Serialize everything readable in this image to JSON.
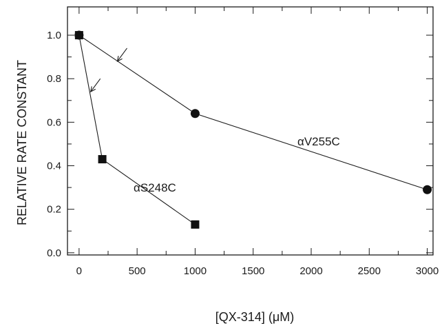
{
  "chart_data": {
    "type": "line",
    "title": "",
    "xlabel": "[QX-314] (μM)",
    "ylabel": "RELATIVE RATE CONSTANT",
    "xlim": [
      -100,
      3050
    ],
    "ylim": [
      -0.01,
      1.13
    ],
    "xticks": [
      0,
      500,
      1000,
      1500,
      2000,
      2500,
      3000
    ],
    "xtick_labels": [
      "0",
      "500",
      "1000",
      "1500",
      "2000",
      "2500",
      "3000"
    ],
    "yticks": [
      0.0,
      0.2,
      0.4,
      0.6,
      0.8,
      1.0
    ],
    "ytick_labels": [
      "0.0",
      "0.2",
      "0.4",
      "0.6",
      "0.8",
      "1.0"
    ],
    "grid": false,
    "series": [
      {
        "name": "αV255C",
        "marker": "circle",
        "x": [
          0,
          1000,
          3000
        ],
        "y": [
          1.0,
          0.64,
          0.29
        ]
      },
      {
        "name": "αS248C",
        "marker": "square",
        "x": [
          0,
          200,
          1000
        ],
        "y": [
          1.0,
          0.43,
          0.13
        ]
      }
    ],
    "annotations": [
      {
        "type": "arrow",
        "series": 0,
        "at_x": 330,
        "at_y": 0.88
      },
      {
        "type": "arrow",
        "series": 1,
        "at_x": 100,
        "at_y": 0.74
      }
    ],
    "colors": {
      "ink": "#111111",
      "background": "#ffffff"
    }
  }
}
